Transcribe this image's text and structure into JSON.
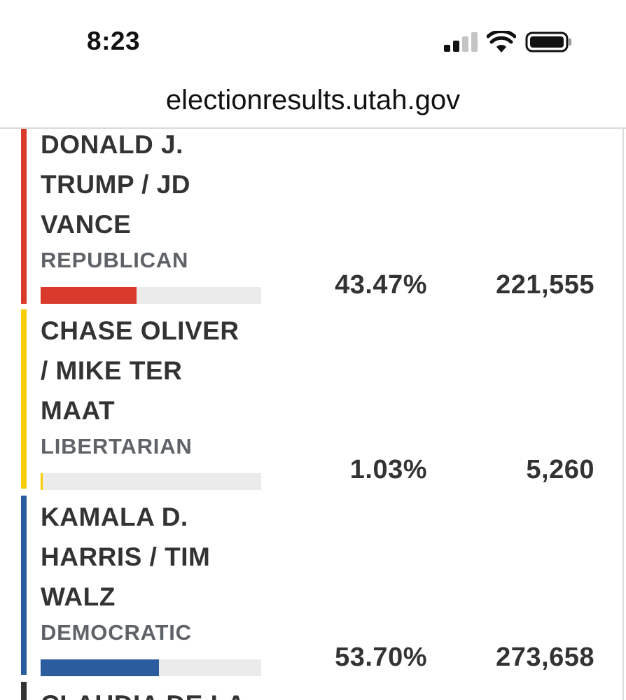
{
  "status_bar": {
    "time": "8:23",
    "icons": [
      "cellular-signal-icon",
      "wifi-icon",
      "battery-icon"
    ]
  },
  "browser": {
    "url": "electionresults.utah.gov"
  },
  "colors": {
    "republican": "#d93a2b",
    "libertarian": "#f7ce00",
    "democratic": "#2b5c9e",
    "bar_track": "#ebebeb"
  },
  "candidates": [
    {
      "name": "DONALD J. TRUMP / JD VANCE",
      "name_lines": [
        "DONALD J.",
        "TRUMP / JD",
        "VANCE"
      ],
      "party": "REPUBLICAN",
      "percent": "43.47%",
      "percent_value": 43.47,
      "votes": "221,555",
      "color": "#d93a2b"
    },
    {
      "name": "CHASE OLIVER / MIKE TER MAAT",
      "name_lines": [
        "CHASE OLIVER",
        "/ MIKE TER",
        "MAAT"
      ],
      "party": "LIBERTARIAN",
      "percent": "1.03%",
      "percent_value": 1.03,
      "votes": "5,260",
      "color": "#f7ce00"
    },
    {
      "name": "KAMALA D. HARRIS / TIM WALZ",
      "name_lines": [
        "KAMALA D.",
        "HARRIS / TIM",
        "WALZ"
      ],
      "party": "DEMOCRATIC",
      "percent": "53.70%",
      "percent_value": 53.7,
      "votes": "273,658",
      "color": "#2b5c9e"
    },
    {
      "name_lines": [
        "CLAUDIA DE LA"
      ]
    }
  ]
}
